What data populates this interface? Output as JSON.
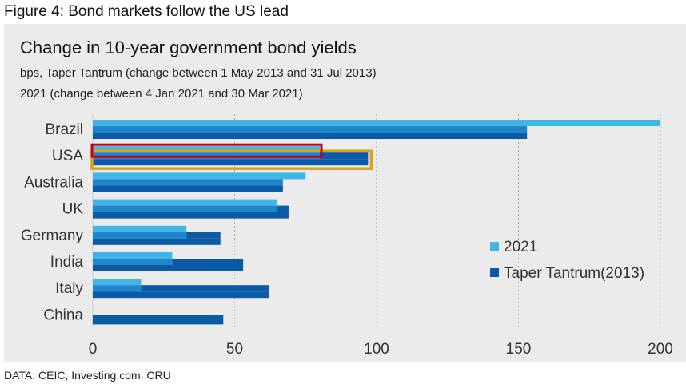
{
  "header": {
    "figure_label": "Figure 4: Bond markets follow the US lead",
    "source": "DATA: CEIC, Investing.com, CRU"
  },
  "chart_data": {
    "type": "bar",
    "orientation": "horizontal",
    "title": "Change in 10-year government bond yields",
    "subtitles": [
      "bps, Taper Tantrum (change between 1 May 2013 and 31 Jul 2013)",
      "2021 (change between 4 Jan 2021 and 30 Mar 2021)"
    ],
    "categories": [
      "Brazil",
      "USA",
      "Australia",
      "UK",
      "Germany",
      "India",
      "Italy",
      "China"
    ],
    "series": [
      {
        "name": "2021",
        "color": "#41b6e6",
        "values": [
          200,
          80,
          75,
          65,
          33,
          28,
          17,
          0
        ]
      },
      {
        "name": "Taper Tantrum(2013)",
        "color": "#0b5aa6",
        "values": [
          153,
          97,
          67,
          69,
          45,
          53,
          62,
          46
        ]
      }
    ],
    "xlim": [
      0,
      200
    ],
    "xticks": [
      0,
      50,
      100,
      150,
      200
    ],
    "grid": true,
    "legend_position": "right",
    "highlight": {
      "category": "USA",
      "series_2021_outline_color": "#c0001a",
      "series_2013_outline_color": "#d9a21b"
    }
  }
}
